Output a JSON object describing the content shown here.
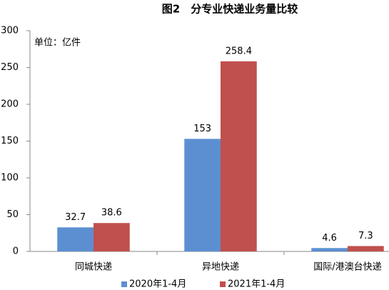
{
  "chart_data": {
    "type": "bar",
    "title": "图2　分专业快递业务量比较",
    "annotation": "单位：亿件",
    "categories": [
      "同城快递",
      "异地快递",
      "国际/港澳台快递"
    ],
    "series": [
      {
        "name": "2020年1-4月",
        "color": "#5b8fd1",
        "values": [
          32.7,
          153,
          4.6
        ]
      },
      {
        "name": "2021年1-4月",
        "color": "#c0504d",
        "values": [
          38.6,
          258.4,
          7.3
        ]
      }
    ],
    "ylim": [
      0,
      300
    ],
    "yticks": [
      0,
      50,
      100,
      150,
      200,
      250,
      300
    ],
    "grid": false,
    "legend": "bottom"
  }
}
